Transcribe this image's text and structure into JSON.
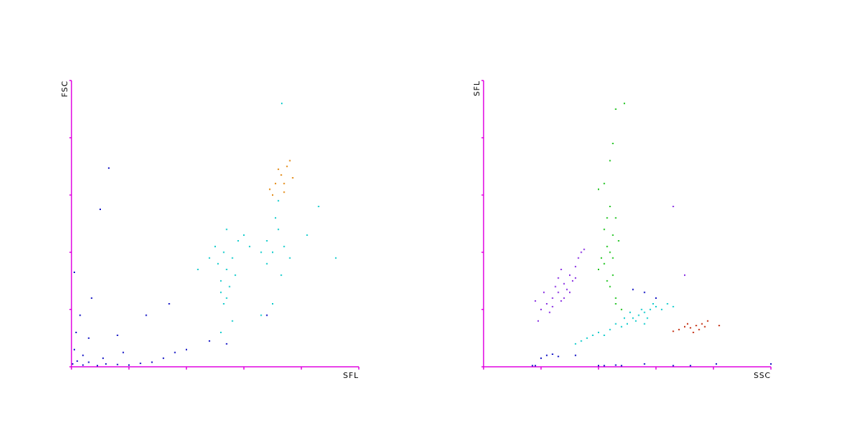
{
  "chart_data": [
    {
      "type": "scatter",
      "x_label": "SFL",
      "y_label": "FSC",
      "axis_color": "#e000e0",
      "xlim": [
        0,
        5
      ],
      "ylim": [
        0,
        5
      ],
      "xticks": [
        0,
        1,
        2,
        3,
        4,
        5
      ],
      "yticks": [
        0,
        1,
        2,
        3,
        4,
        5
      ],
      "series": [
        {
          "color": "#0000c0",
          "x": [
            0.02,
            0.1,
            0.2,
            0.3,
            0.45,
            0.6,
            0.8,
            1.0,
            1.2,
            1.4,
            1.6,
            1.8,
            0.05,
            0.08,
            0.15,
            0.3,
            0.35,
            0.05,
            0.65,
            0.5,
            0.8,
            1.3,
            1.7,
            2.4,
            2.7,
            3.4,
            0.2,
            0.55,
            0.9,
            2.0
          ],
          "values": [
            0.05,
            0.1,
            0.03,
            0.08,
            0.02,
            0.05,
            0.04,
            0.03,
            0.06,
            0.08,
            0.15,
            0.25,
            0.3,
            0.6,
            0.9,
            0.5,
            1.2,
            1.65,
            3.47,
            2.75,
            0.55,
            0.9,
            1.1,
            0.45,
            0.4,
            0.9,
            0.2,
            0.15,
            0.25,
            0.3
          ]
        },
        {
          "color": "#00c8c8",
          "x": [
            2.6,
            2.7,
            2.65,
            2.8,
            2.55,
            2.9,
            2.75,
            2.6,
            2.7,
            3.0,
            2.5,
            2.85,
            2.7,
            3.1,
            2.4,
            2.65,
            3.4,
            3.5,
            3.6,
            3.4,
            3.7,
            3.55,
            3.3,
            3.8,
            3.65,
            2.2,
            4.1,
            4.3,
            3.5,
            3.3,
            2.8,
            4.6,
            2.6,
            3.6,
            3.66
          ],
          "values": [
            1.5,
            1.7,
            2.0,
            1.9,
            1.8,
            2.2,
            1.4,
            1.3,
            1.2,
            2.3,
            2.1,
            1.6,
            2.4,
            2.1,
            1.9,
            1.1,
            2.2,
            2.0,
            2.4,
            1.8,
            2.1,
            2.6,
            2.0,
            1.9,
            1.6,
            1.7,
            2.3,
            2.8,
            1.1,
            0.9,
            0.8,
            1.9,
            0.6,
            2.9,
            4.6
          ]
        },
        {
          "color": "#e08000",
          "x": [
            3.45,
            3.55,
            3.65,
            3.7,
            3.75,
            3.8,
            3.6,
            3.7,
            3.85,
            3.5
          ],
          "values": [
            3.1,
            3.2,
            3.35,
            3.2,
            3.5,
            3.6,
            3.45,
            3.05,
            3.3,
            3.0
          ]
        }
      ]
    },
    {
      "type": "scatter",
      "x_label": "SSC",
      "y_label": "SFL",
      "axis_color": "#e000e0",
      "xlim": [
        0,
        5
      ],
      "ylim": [
        0,
        5
      ],
      "xticks": [
        0,
        1,
        2,
        3,
        4,
        5
      ],
      "yticks": [
        0,
        1,
        2,
        3,
        4,
        5
      ],
      "series": [
        {
          "color": "#8020e0",
          "x": [
            1.1,
            1.2,
            1.3,
            1.4,
            1.5,
            1.6,
            1.0,
            1.25,
            1.35,
            1.45,
            1.55,
            1.15,
            1.05,
            1.3,
            1.65,
            0.95,
            1.4,
            1.7,
            1.2,
            1.5,
            0.9,
            1.6,
            1.35,
            1.75,
            3.3,
            3.5
          ],
          "values": [
            1.1,
            1.2,
            1.3,
            1.45,
            1.6,
            1.75,
            1.0,
            1.4,
            1.15,
            1.35,
            1.5,
            0.95,
            1.3,
            1.55,
            1.9,
            0.8,
            1.2,
            2.0,
            1.05,
            1.3,
            1.15,
            1.55,
            1.7,
            2.05,
            2.8,
            1.6
          ]
        },
        {
          "color": "#10c010",
          "x": [
            2.1,
            2.2,
            2.25,
            2.15,
            2.3,
            2.2,
            2.05,
            2.25,
            2.2,
            2.3,
            2.1,
            2.35,
            2.0,
            2.15,
            2.25,
            2.2,
            2.25,
            2.1,
            2.3,
            2.45,
            2.0,
            2.4,
            2.3,
            2.15
          ],
          "values": [
            1.8,
            2.0,
            2.3,
            2.1,
            2.6,
            2.8,
            1.9,
            1.6,
            1.4,
            1.2,
            2.4,
            2.2,
            1.7,
            2.6,
            1.9,
            3.6,
            3.9,
            3.2,
            4.5,
            4.6,
            3.1,
            1.0,
            1.1,
            1.5
          ]
        },
        {
          "color": "#00c8c8",
          "x": [
            2.6,
            2.7,
            2.8,
            2.9,
            3.0,
            2.5,
            2.65,
            2.85,
            3.1,
            3.2,
            2.75,
            2.95,
            2.4,
            2.3,
            2.2,
            2.0,
            1.9,
            1.8,
            1.7,
            2.1,
            2.55,
            3.3,
            2.8,
            2.45,
            1.6
          ],
          "values": [
            0.85,
            0.9,
            0.95,
            1.0,
            1.05,
            0.75,
            0.8,
            0.85,
            1.0,
            1.1,
            1.0,
            1.1,
            0.7,
            0.75,
            0.65,
            0.6,
            0.55,
            0.5,
            0.45,
            0.55,
            0.95,
            1.05,
            0.75,
            0.85,
            0.4
          ]
        },
        {
          "color": "#c02000",
          "x": [
            3.4,
            3.5,
            3.6,
            3.7,
            3.8,
            3.9,
            3.65,
            3.55,
            3.75,
            3.3,
            4.1,
            3.85
          ],
          "values": [
            0.65,
            0.7,
            0.68,
            0.72,
            0.75,
            0.8,
            0.6,
            0.75,
            0.65,
            0.62,
            0.72,
            0.7
          ]
        },
        {
          "color": "#0000c0",
          "x": [
            1.1,
            1.2,
            1.3,
            1.0,
            0.9,
            2.0,
            2.1,
            2.4,
            2.8,
            3.3,
            3.6,
            4.05,
            2.6,
            2.8,
            1.6,
            0.85,
            2.3,
            5.0,
            3.0
          ],
          "values": [
            0.2,
            0.22,
            0.18,
            0.15,
            0.02,
            0.02,
            0.02,
            0.02,
            0.05,
            0.02,
            0.02,
            0.05,
            1.35,
            1.3,
            0.2,
            0.02,
            0.03,
            0.05,
            1.2
          ]
        }
      ]
    }
  ]
}
